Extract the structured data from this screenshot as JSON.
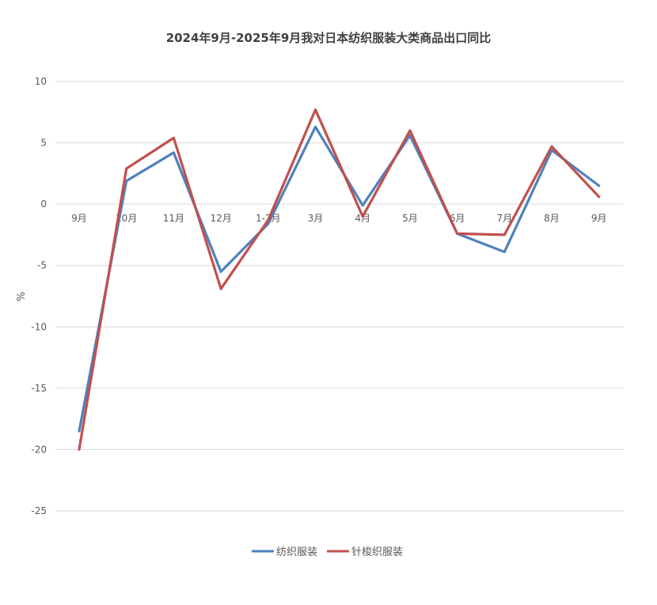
{
  "chart_data": {
    "type": "line",
    "title": "2024年9月-2025年9月我对日本纺织服装大类商品出口同比",
    "xlabel": "",
    "ylabel": "%",
    "categories": [
      "9月",
      "10月",
      "11月",
      "12月",
      "1-2月",
      "3月",
      "4月",
      "5月",
      "6月",
      "7月",
      "8月",
      "9月"
    ],
    "ylim": [
      -25,
      10
    ],
    "yticks": [
      10,
      5,
      0,
      -5,
      -10,
      -15,
      -20,
      -25
    ],
    "grid": true,
    "legend_position": "bottom",
    "series": [
      {
        "name": "纺织服装",
        "color": "#4f81bd",
        "values": [
          -18.5,
          1.9,
          4.2,
          -5.5,
          -1.6,
          6.3,
          -0.1,
          5.6,
          -2.4,
          -3.9,
          4.4,
          1.5
        ]
      },
      {
        "name": "针梭织服装",
        "color": "#c0504d",
        "values": [
          -20.0,
          2.9,
          5.4,
          -6.9,
          -1.3,
          7.7,
          -1.0,
          6.0,
          -2.4,
          -2.5,
          4.7,
          0.6
        ]
      }
    ]
  }
}
